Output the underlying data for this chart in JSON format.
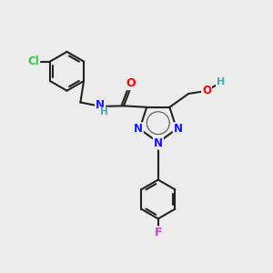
{
  "background_color": "#ececec",
  "bond_color": "#222222",
  "atom_colors": {
    "N": "#1414ff",
    "O": "#ff0000",
    "Cl": "#2ecc40",
    "F": "#cc44cc",
    "H": "#44aaaa"
  },
  "bond_width": 1.5,
  "figsize": [
    3.0,
    3.0
  ],
  "dpi": 100
}
